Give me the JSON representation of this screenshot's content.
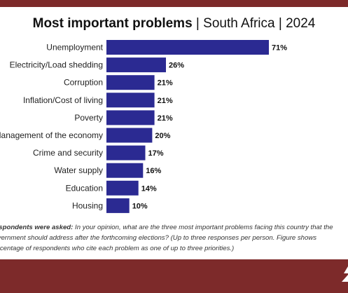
{
  "chart_data": {
    "type": "bar",
    "orientation": "horizontal",
    "title": "Most important problems",
    "subtitle_parts": [
      "South Africa",
      "2024"
    ],
    "separator": " | ",
    "categories": [
      "Unemployment",
      "Electricity/Load shedding",
      "Corruption",
      "Inflation/Cost of living",
      "Poverty",
      "Management of the economy",
      "Crime and security",
      "Water supply",
      "Education",
      "Housing"
    ],
    "values": [
      71,
      26,
      21,
      21,
      21,
      20,
      17,
      16,
      14,
      10
    ],
    "value_labels": [
      "71%",
      "26%",
      "21%",
      "21%",
      "21%",
      "20%",
      "17%",
      "16%",
      "14%",
      "10%"
    ],
    "bar_color": "#2b2a92",
    "xlim": [
      0,
      71
    ],
    "grid": false,
    "legend": "none"
  },
  "note": {
    "lead": "Respondents were asked:",
    "text": "In your opinion, what are the three most important problems facing this country that the government should address after the forthcoming elections? (Up to three responses per person. Figure shows percentage of respondents who cite each problem as one of up to three priorities.)"
  },
  "colors": {
    "frame": "#7d2a2a",
    "panel": "#ffffff",
    "bar": "#2b2a92"
  }
}
